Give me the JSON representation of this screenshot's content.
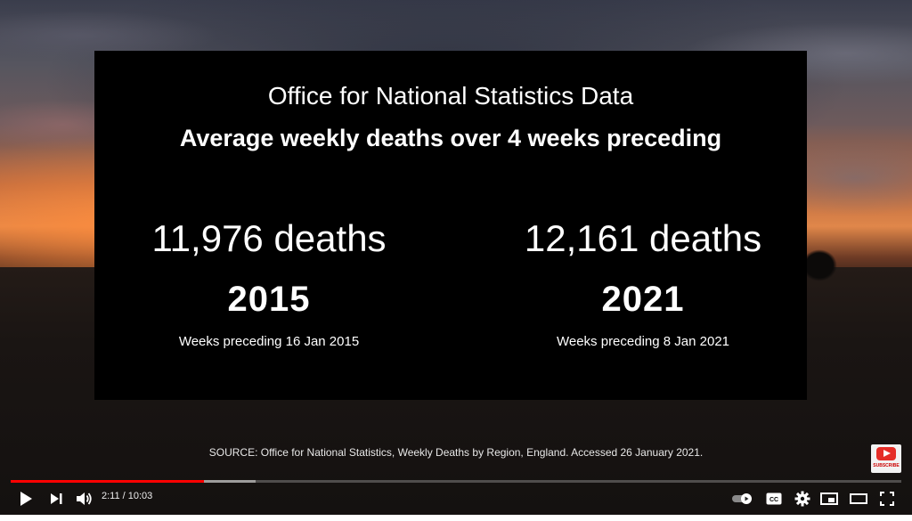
{
  "video": {
    "card": {
      "subtitle": "Office for National Statistics Data",
      "title": "Average weekly deaths over 4 weeks preceding",
      "left": {
        "deaths": "11,976 deaths",
        "year": "2015",
        "weeks": "Weeks preceding 16 Jan 2015"
      },
      "right": {
        "deaths": "12,161 deaths",
        "year": "2021",
        "weeks": "Weeks preceding 8 Jan 2021"
      }
    },
    "source": "SOURCE: Office for National Statistics, Weekly Deaths by Region, England. Accessed 26 January 2021.",
    "subscribe_label": "SUBSCRIBE"
  },
  "player": {
    "current_time": "2:11",
    "separator": " / ",
    "duration": "10:03",
    "progress_played": 0.217,
    "progress_buffered": 0.275,
    "controls": {
      "play": "play-icon",
      "next": "next-icon",
      "volume": "volume-icon",
      "autoplay": "autoplay-toggle-icon",
      "captions": "captions-icon",
      "settings": "gear-icon",
      "miniplayer": "miniplayer-icon",
      "theater": "theater-mode-icon",
      "fullscreen": "fullscreen-icon"
    },
    "accent_color": "#ff0000"
  }
}
